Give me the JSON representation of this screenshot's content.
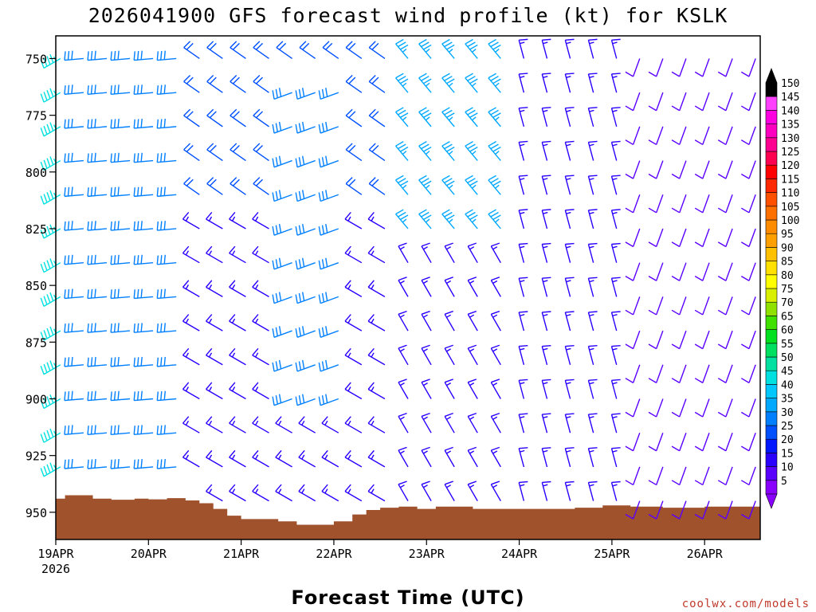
{
  "chart_data": {
    "type": "wind-barb-time-height",
    "title": "2026041900 GFS forecast wind profile (kt) for KSLK",
    "xlabel": "Forecast Time (UTC)",
    "x_ticks": [
      "19APR",
      "20APR",
      "21APR",
      "22APR",
      "23APR",
      "24APR",
      "25APR",
      "26APR"
    ],
    "x_tick_sublabel": "2026",
    "y_ticks": [
      "750",
      "775",
      "800",
      "825",
      "850",
      "875",
      "900",
      "925",
      "950"
    ],
    "ylim_hpa": [
      740,
      962
    ],
    "xlim_days": [
      0,
      7.6
    ],
    "pressure_levels_hpa": [
      750,
      765,
      780,
      795,
      810,
      825,
      840,
      855,
      870,
      885,
      900,
      915,
      930,
      945
    ],
    "barb_time_step_hours": 6,
    "speed_unit": "kt",
    "colorbar_levels": [
      5,
      10,
      15,
      20,
      25,
      30,
      35,
      40,
      45,
      50,
      55,
      60,
      65,
      70,
      75,
      80,
      85,
      90,
      95,
      100,
      105,
      110,
      115,
      120,
      125,
      130,
      135,
      140,
      145,
      150
    ],
    "colorbar_colors": [
      "#8a00ff",
      "#5a00ff",
      "#2a00ff",
      "#0018ff",
      "#0050ff",
      "#0080ff",
      "#00a8ff",
      "#00c8ff",
      "#00e0e0",
      "#00e0a0",
      "#00e060",
      "#00e020",
      "#40e000",
      "#90e000",
      "#d8f000",
      "#ffff00",
      "#ffe000",
      "#ffc000",
      "#ffa000",
      "#ff8c00",
      "#ff7000",
      "#ff5000",
      "#ff2800",
      "#ff0000",
      "#ff0050",
      "#ff0090",
      "#ff00c0",
      "#ff00e0",
      "#ff40ff",
      "#000000"
    ],
    "terrain_color": "#a0522d",
    "terrain_surface_hpa": [
      [
        0,
        944
      ],
      [
        0.1,
        942.5
      ],
      [
        0.4,
        944
      ],
      [
        0.6,
        944.5
      ],
      [
        0.85,
        944
      ],
      [
        1.0,
        944.3
      ],
      [
        1.2,
        943.8
      ],
      [
        1.4,
        944.8
      ],
      [
        1.55,
        946
      ],
      [
        1.7,
        948.5
      ],
      [
        1.85,
        951.5
      ],
      [
        2.0,
        953
      ],
      [
        2.2,
        953
      ],
      [
        2.4,
        954
      ],
      [
        2.6,
        955.5
      ],
      [
        2.8,
        955.5
      ],
      [
        3.0,
        954
      ],
      [
        3.2,
        951
      ],
      [
        3.35,
        949
      ],
      [
        3.5,
        948
      ],
      [
        3.7,
        947.5
      ],
      [
        3.9,
        948.5
      ],
      [
        4.1,
        947.5
      ],
      [
        4.5,
        948.5
      ],
      [
        5.0,
        948.5
      ],
      [
        5.6,
        948
      ],
      [
        5.9,
        947
      ],
      [
        6.2,
        947.5
      ],
      [
        6.55,
        948
      ],
      [
        7.0,
        947.5
      ],
      [
        7.6,
        947.5
      ]
    ],
    "wind_regimes": [
      {
        "days": [
          0.0,
          0.15
        ],
        "levels_hpa": [
          750,
          945
        ],
        "dir_deg": 240,
        "speed_kt": 45
      },
      {
        "days": [
          0.15,
          1.4
        ],
        "levels_hpa": [
          750,
          945
        ],
        "dir_deg": 265,
        "speed_kt": 28
      },
      {
        "days": [
          1.4,
          3.6
        ],
        "levels_hpa": [
          750,
          820
        ],
        "dir_deg": 305,
        "speed_kt": 22
      },
      {
        "days": [
          1.4,
          3.6
        ],
        "levels_hpa": [
          825,
          945
        ],
        "dir_deg": 300,
        "speed_kt": 15
      },
      {
        "days": [
          2.5,
          3.3
        ],
        "levels_hpa": [
          765,
          905
        ],
        "dir_deg": 250,
        "speed_kt": 28
      },
      {
        "days": [
          3.6,
          5.0
        ],
        "levels_hpa": [
          750,
          830
        ],
        "dir_deg": 320,
        "speed_kt": 35
      },
      {
        "days": [
          3.6,
          5.0
        ],
        "levels_hpa": [
          835,
          945
        ],
        "dir_deg": 330,
        "speed_kt": 15
      },
      {
        "days": [
          5.0,
          6.2
        ],
        "levels_hpa": [
          750,
          945
        ],
        "dir_deg": 345,
        "speed_kt": 15
      },
      {
        "days": [
          6.2,
          7.6
        ],
        "levels_hpa": [
          750,
          945
        ],
        "dir_deg": 200,
        "speed_kt": 10
      }
    ]
  },
  "credit": "coolwx.com/models"
}
